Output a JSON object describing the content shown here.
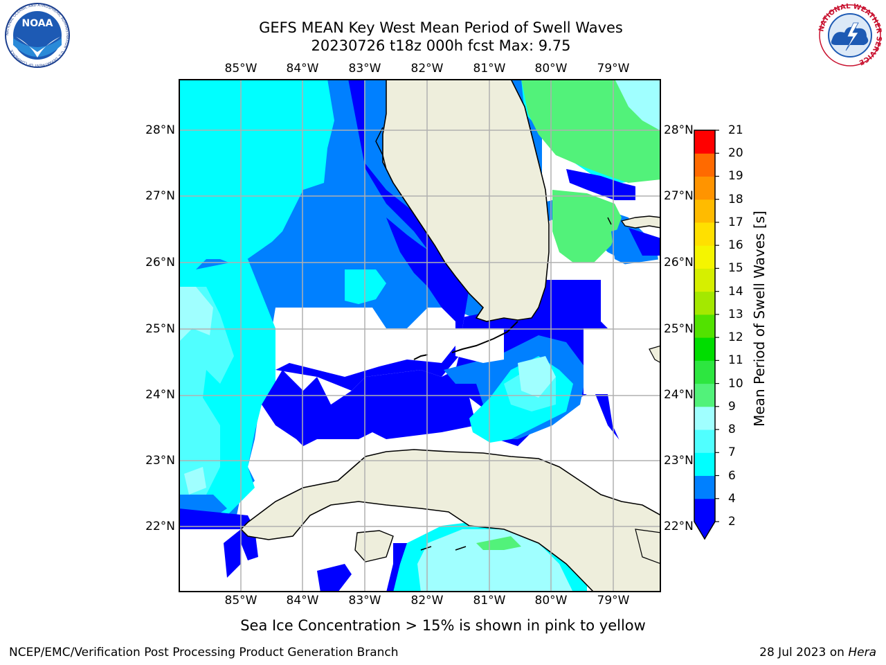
{
  "title": {
    "line1": "GEFS MEAN Key West Mean Period of Swell Waves",
    "line2": "20230726 t18z 000h fcst   Max: 9.75"
  },
  "logos": {
    "left": {
      "name": "NOAA",
      "ring_text": "NATIONAL OCEANIC AND ATMOSPHERIC ADMINISTRATION · U.S. DEPARTMENT OF COMMERCE"
    },
    "right": {
      "ring_text": "NATIONAL WEATHER SERVICE"
    }
  },
  "map": {
    "lon_ticks": [
      "85°W",
      "84°W",
      "83°W",
      "82°W",
      "81°W",
      "80°W",
      "79°W"
    ],
    "lat_ticks": [
      "28°N",
      "27°N",
      "26°N",
      "25°N",
      "24°N",
      "23°N",
      "22°N"
    ],
    "lon_range": [
      -86.0,
      -78.25
    ],
    "lat_range": [
      21.0,
      28.75
    ],
    "grid": true,
    "land_color": "#eeeedc",
    "ocean_colors": {
      "2-4": "#0000ff",
      "4-6": "#0080ff",
      "6-7": "#00ffff",
      "7-8": "#50ffff",
      "8-9": "#a0ffff",
      "9-10": "#52f27a"
    }
  },
  "colorbar": {
    "label": "Mean Period of Swell Waves [s]",
    "ticks": [
      "2",
      "4",
      "6",
      "7",
      "8",
      "9",
      "10",
      "11",
      "12",
      "13",
      "14",
      "15",
      "16",
      "17",
      "18",
      "19",
      "20",
      "21"
    ],
    "colors": [
      "#0000ff",
      "#0080ff",
      "#00ffff",
      "#50ffff",
      "#a0ffff",
      "#52f27a",
      "#2de640",
      "#00dd00",
      "#52e200",
      "#a4e800",
      "#d6ef00",
      "#f5f500",
      "#ffe000",
      "#ffbb00",
      "#ff9400",
      "#ff6a00",
      "#ff3a00",
      "#ff0000"
    ],
    "extend_min_color": "#0000ff"
  },
  "caption": "Sea Ice Concentration > 15% is shown in pink to yellow",
  "footer": {
    "left": "NCEP/EMC/Verification Post Processing Product Generation Branch",
    "right_date": "28 Jul 2023 on ",
    "right_host": "Hera"
  }
}
